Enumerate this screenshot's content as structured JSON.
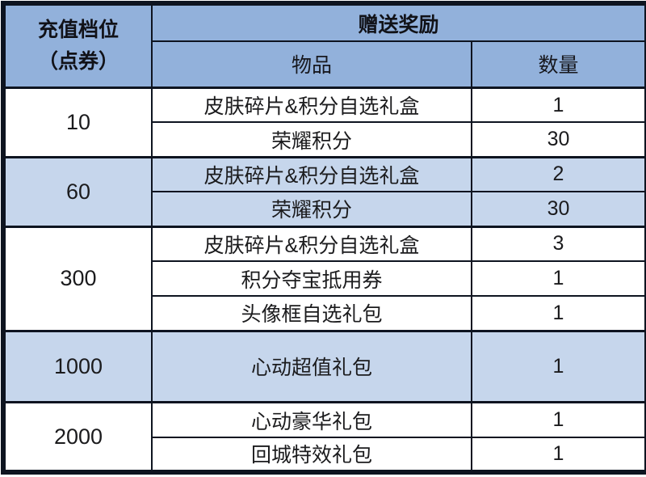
{
  "table": {
    "header": {
      "tier_label_line1": "充值档位",
      "tier_label_line2": "（点券）",
      "reward_label": "赠送奖励",
      "item_label": "物品",
      "qty_label": "数量"
    },
    "tiers": [
      {
        "tier": "10",
        "shaded": false,
        "rewards": [
          {
            "item": "皮肤碎片&积分自选礼盒",
            "qty": "1"
          },
          {
            "item": "荣耀积分",
            "qty": "30"
          }
        ]
      },
      {
        "tier": "60",
        "shaded": true,
        "rewards": [
          {
            "item": "皮肤碎片&积分自选礼盒",
            "qty": "2"
          },
          {
            "item": "荣耀积分",
            "qty": "30"
          }
        ]
      },
      {
        "tier": "300",
        "shaded": false,
        "rewards": [
          {
            "item": "皮肤碎片&积分自选礼盒",
            "qty": "3"
          },
          {
            "item": "积分夺宝抵用券",
            "qty": "1"
          },
          {
            "item": "头像框自选礼包",
            "qty": "1"
          }
        ]
      },
      {
        "tier": "1000",
        "shaded": true,
        "rewards": [
          {
            "item": "心动超值礼包",
            "qty": "1"
          }
        ]
      },
      {
        "tier": "2000",
        "shaded": false,
        "rewards": [
          {
            "item": "心动豪华礼包",
            "qty": "1"
          },
          {
            "item": "回城特效礼包",
            "qty": "1"
          }
        ]
      }
    ],
    "colors": {
      "header_bg": "#92b1db",
      "shaded_row_bg": "#c6d6ec",
      "plain_row_bg": "#ffffff",
      "border": "#0e1420",
      "text": "#1b1b1d"
    }
  }
}
